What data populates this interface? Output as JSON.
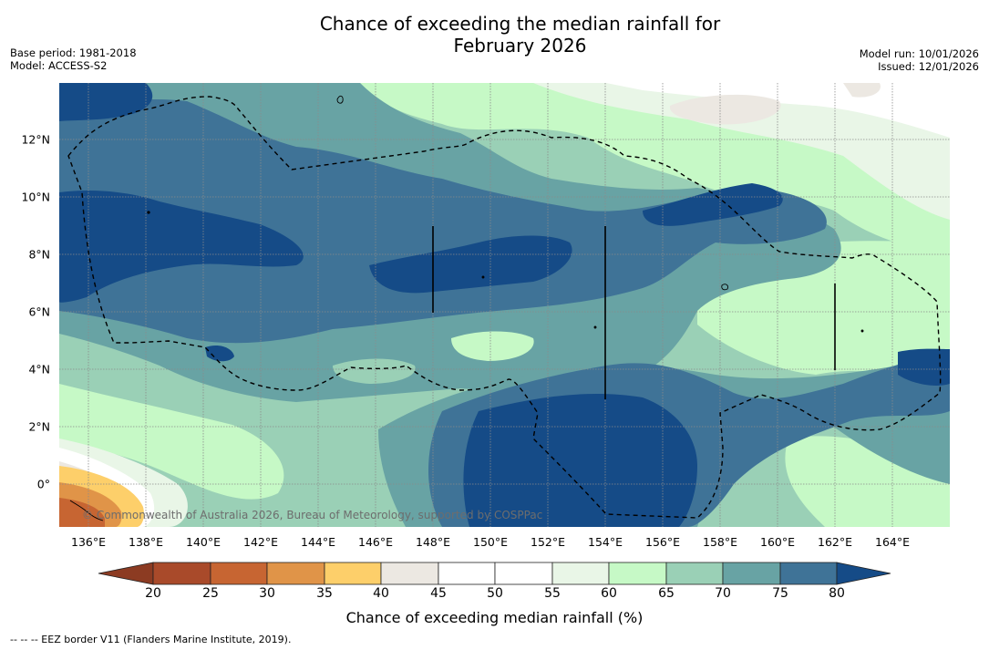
{
  "title": {
    "line1": "Chance of exceeding the median rainfall for",
    "line2": "February 2026"
  },
  "meta_left": {
    "base_period": "Base period: 1981-2018",
    "model": "Model: ACCESS-S2"
  },
  "meta_right": {
    "model_run": "Model run: 10/01/2026",
    "issued": "Issued: 12/01/2026"
  },
  "copyright": "© Commonwealth of Australia 2026, Bureau of Meteorology, supported by COSPPac",
  "map": {
    "lon_range": [
      135,
      166
    ],
    "lat_range": [
      -1.5,
      14
    ],
    "x_ticks": [
      "136°E",
      "138°E",
      "140°E",
      "142°E",
      "144°E",
      "146°E",
      "148°E",
      "150°E",
      "152°E",
      "154°E",
      "156°E",
      "158°E",
      "160°E",
      "162°E",
      "164°E"
    ],
    "y_ticks": [
      "12°N",
      "10°N",
      "8°N",
      "6°N",
      "4°N",
      "2°N",
      "0°"
    ]
  },
  "colorbar": {
    "ticks": [
      "20",
      "25",
      "30",
      "35",
      "40",
      "45",
      "50",
      "55",
      "60",
      "65",
      "70",
      "75",
      "80"
    ],
    "label": "Chance of exceeding median rainfall (%)",
    "colors": {
      "below_20": "#8c3b22",
      "c20_25": "#a94a2a",
      "c25_30": "#c76532",
      "c30_35": "#e09448",
      "c35_40": "#fdcf6a",
      "c40_45": "#ece8e2",
      "c45_50": "#ffffff",
      "c50_55": "#ffffff",
      "c55_60": "#e9f6e7",
      "c60_65": "#c6f9c6",
      "c65_70": "#9ad0b6",
      "c70_75": "#68a3a4",
      "c75_80": "#3f7397",
      "above_80": "#154b87"
    }
  },
  "footer": "--  --  -- EEZ border V11 (Flanders Marine Institute, 2019)."
}
